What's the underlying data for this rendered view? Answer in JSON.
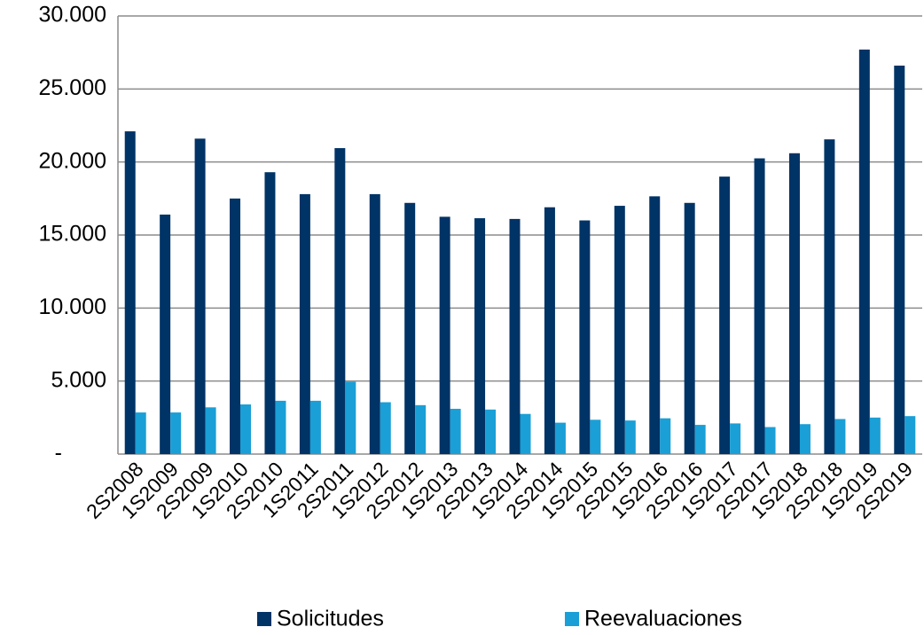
{
  "chart_data": {
    "type": "bar",
    "categories": [
      "2S2008",
      "1S2009",
      "2S2009",
      "1S2010",
      "2S2010",
      "1S2011",
      "2S2011",
      "1S2012",
      "2S2012",
      "1S2013",
      "2S2013",
      "1S2014",
      "2S2014",
      "1S2015",
      "2S2015",
      "1S2016",
      "2S2016",
      "1S2017",
      "2S2017",
      "1S2018",
      "2S2018",
      "1S2019",
      "2S2019"
    ],
    "series": [
      {
        "name": "Solicitudes",
        "color": "#003366",
        "values": [
          22100,
          16400,
          21600,
          17500,
          19300,
          17800,
          20950,
          17800,
          17200,
          16250,
          16150,
          16100,
          16900,
          16000,
          17000,
          17650,
          17200,
          19000,
          20250,
          20600,
          21550,
          27700,
          26600
        ]
      },
      {
        "name": "Reevaluaciones",
        "color": "#1a9fd6",
        "values": [
          2850,
          2850,
          3200,
          3400,
          3650,
          3650,
          4950,
          3550,
          3350,
          3100,
          3050,
          2750,
          2150,
          2350,
          2300,
          2450,
          2000,
          2100,
          1850,
          2050,
          2400,
          2500,
          2600
        ]
      }
    ],
    "ylim": [
      0,
      30000
    ],
    "yticks": [
      {
        "value": 0,
        "label": "-"
      },
      {
        "value": 5000,
        "label": "5.000"
      },
      {
        "value": 10000,
        "label": "10.000"
      },
      {
        "value": 15000,
        "label": "15.000"
      },
      {
        "value": 20000,
        "label": "20.000"
      },
      {
        "value": 25000,
        "label": "25.000"
      },
      {
        "value": 30000,
        "label": "30.000"
      }
    ],
    "grid": true
  }
}
